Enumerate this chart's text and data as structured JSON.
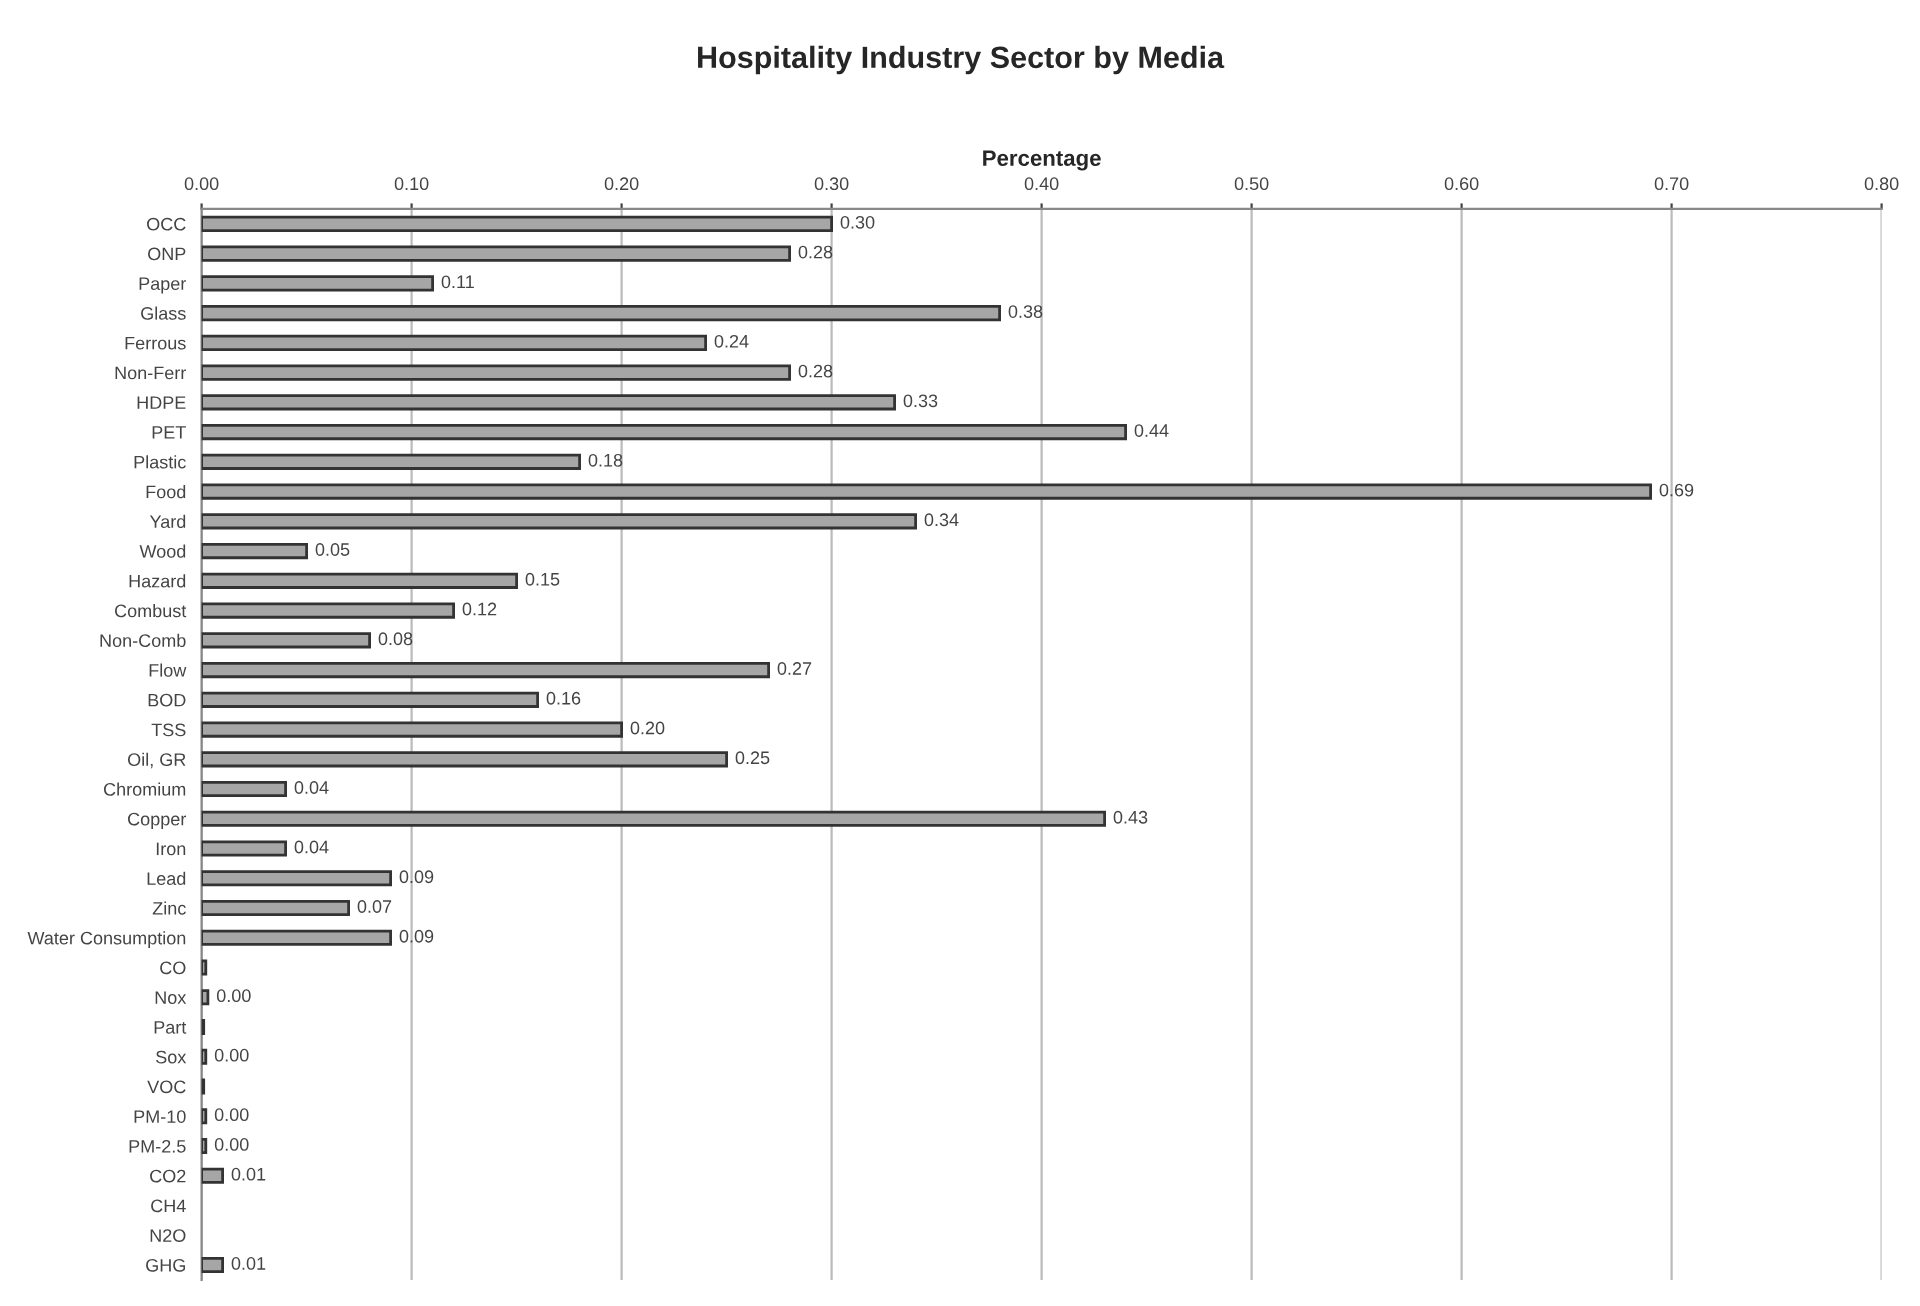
{
  "chart_data": {
    "type": "bar",
    "orientation": "horizontal",
    "title": "Hospitality Industry Sector by Media",
    "xlabel": "Percentage",
    "categories": [
      "OCC",
      "ONP",
      "Paper",
      "Glass",
      "Ferrous",
      "Non-Ferr",
      "HDPE",
      "PET",
      "Plastic",
      "Food",
      "Yard",
      "Wood",
      "Hazard",
      "Combust",
      "Non-Comb",
      "Flow",
      "BOD",
      "TSS",
      "Oil, GR",
      "Chromium",
      "Copper",
      "Iron",
      "Lead",
      "Zinc",
      "Water Consumption",
      "CO",
      "Nox",
      "Part",
      "Sox",
      "VOC",
      "PM-10",
      "PM-2.5",
      "CO2",
      "CH4",
      "N2O",
      "GHG"
    ],
    "values": [
      0.3,
      0.28,
      0.11,
      0.38,
      0.24,
      0.28,
      0.33,
      0.44,
      0.18,
      0.69,
      0.34,
      0.05,
      0.15,
      0.12,
      0.08,
      0.27,
      0.16,
      0.2,
      0.25,
      0.04,
      0.43,
      0.04,
      0.09,
      0.07,
      0.09,
      0.002,
      0.003,
      0.001,
      0.002,
      0.001,
      0.002,
      0.002,
      0.01,
      null,
      null,
      0.01
    ],
    "value_labels": [
      "0.30",
      "0.28",
      "0.11",
      "0.38",
      "0.24",
      "0.28",
      "0.33",
      "0.44",
      "0.18",
      "0.69",
      "0.34",
      "0.05",
      "0.15",
      "0.12",
      "0.08",
      "0.27",
      "0.16",
      "0.20",
      "0.25",
      "0.04",
      "0.43",
      "0.04",
      "0.09",
      "0.07",
      "0.09",
      null,
      "0.00",
      null,
      "0.00",
      null,
      "0.00",
      "0.00",
      "0.01",
      null,
      null,
      "0.01"
    ],
    "color": "#a6a6a6",
    "xlim": [
      0,
      0.8
    ],
    "xticks": [
      {
        "value": 0,
        "label": "0.00"
      },
      {
        "value": 0.1,
        "label": "0.10"
      },
      {
        "value": 0.2,
        "label": "0.20"
      },
      {
        "value": 0.3,
        "label": "0.30"
      },
      {
        "value": 0.4,
        "label": "0.40"
      },
      {
        "value": 0.5,
        "label": "0.50"
      },
      {
        "value": 0.6,
        "label": "0.60"
      },
      {
        "value": 0.7,
        "label": "0.70"
      },
      {
        "value": 0.8,
        "label": "0.80"
      }
    ],
    "grid": "x",
    "legend": false
  }
}
